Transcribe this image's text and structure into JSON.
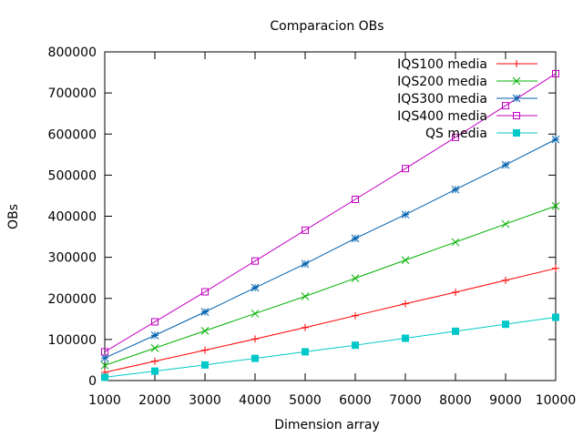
{
  "chart_data": {
    "type": "line",
    "title": "Comparacion OBs",
    "xlabel": "Dimension array",
    "ylabel": "OBs",
    "xlim": [
      1000,
      10000
    ],
    "ylim": [
      0,
      800000
    ],
    "xticks": [
      1000,
      2000,
      3000,
      4000,
      5000,
      6000,
      7000,
      8000,
      9000,
      10000
    ],
    "yticks": [
      0,
      100000,
      200000,
      300000,
      400000,
      500000,
      600000,
      700000,
      800000
    ],
    "grid": false,
    "legend_position": "top-right",
    "x": [
      1000,
      2000,
      3000,
      4000,
      5000,
      6000,
      7000,
      8000,
      9000,
      10000
    ],
    "series": [
      {
        "name": "IQS100 media",
        "color": "#ff0000",
        "marker": "plus",
        "values": [
          20000,
          47000,
          74000,
          101000,
          129000,
          158000,
          187000,
          215000,
          244000,
          273000
        ]
      },
      {
        "name": "IQS200 media",
        "color": "#00b000",
        "marker": "cross",
        "values": [
          37000,
          79000,
          121000,
          163000,
          205000,
          249000,
          293000,
          337000,
          381000,
          425000
        ]
      },
      {
        "name": "IQS300 media",
        "color": "#0060ad",
        "marker": "star",
        "values": [
          55000,
          110000,
          167000,
          226000,
          284000,
          346000,
          404000,
          465000,
          525000,
          587000
        ]
      },
      {
        "name": "IQS400 media",
        "color": "#c000c0",
        "marker": "open-square",
        "values": [
          70000,
          143000,
          216000,
          291000,
          366000,
          441000,
          516000,
          592000,
          669000,
          747000
        ]
      },
      {
        "name": "QS media",
        "color": "#00c8c8",
        "marker": "filled-square",
        "values": [
          8000,
          23000,
          38000,
          54000,
          70000,
          86000,
          103000,
          120000,
          137000,
          154000
        ]
      }
    ]
  }
}
